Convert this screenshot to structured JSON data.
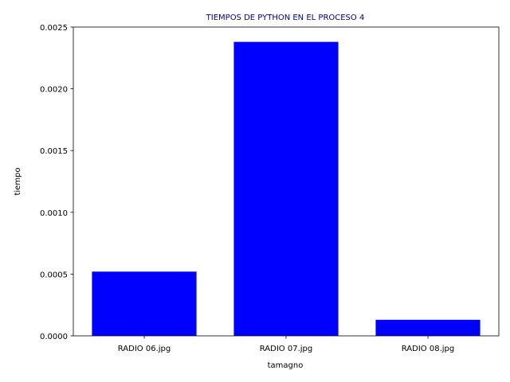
{
  "chart_data": {
    "type": "bar",
    "title": "TIEMPOS DE PYTHON EN EL PROCESO 4",
    "title_color": "#00008b",
    "xlabel": "tamagno",
    "ylabel": "tiempo",
    "categories": [
      "RADIO 06.jpg",
      "RADIO 07.jpg",
      "RADIO 08.jpg"
    ],
    "values": [
      0.00052,
      0.00238,
      0.00013
    ],
    "ylim": [
      0,
      0.0025
    ],
    "yticks": [
      "0.0000",
      "0.0005",
      "0.0010",
      "0.0015",
      "0.0020",
      "0.0025"
    ],
    "bar_color": "#0000ff",
    "grid": false
  }
}
